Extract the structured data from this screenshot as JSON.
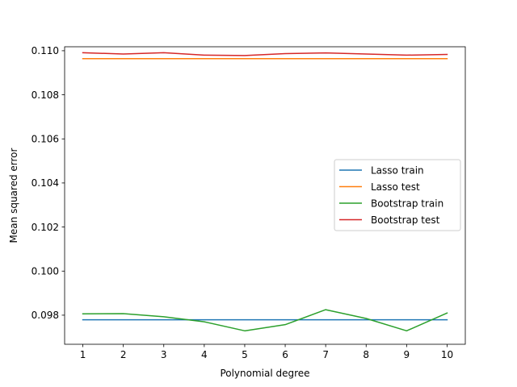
{
  "chart_data": {
    "type": "line",
    "title": "",
    "xlabel": "Polynomial degree",
    "ylabel": "Mean squared error",
    "x": [
      1,
      2,
      3,
      4,
      5,
      6,
      7,
      8,
      9,
      10
    ],
    "xlim": [
      0.55,
      10.45
    ],
    "ylim": [
      0.09668,
      0.11018
    ],
    "x_ticks": [
      1,
      2,
      3,
      4,
      5,
      6,
      7,
      8,
      9,
      10
    ],
    "y_ticks": [
      0.098,
      0.1,
      0.102,
      0.104,
      0.106,
      0.108,
      0.11
    ],
    "y_tick_labels": [
      "0.098",
      "0.100",
      "0.102",
      "0.104",
      "0.106",
      "0.108",
      "0.110"
    ],
    "grid": false,
    "legend_position": "center-right",
    "series": [
      {
        "name": "Lasso train",
        "color": "#1f77b4",
        "values": [
          0.09779,
          0.09779,
          0.09779,
          0.09779,
          0.09779,
          0.09779,
          0.09779,
          0.09779,
          0.09779,
          0.09779
        ]
      },
      {
        "name": "Lasso test",
        "color": "#ff7f0e",
        "values": [
          0.10964,
          0.10964,
          0.10964,
          0.10964,
          0.10964,
          0.10964,
          0.10964,
          0.10964,
          0.10964,
          0.10964
        ]
      },
      {
        "name": "Bootstrap train",
        "color": "#2ca02c",
        "values": [
          0.09806,
          0.09807,
          0.09793,
          0.0977,
          0.09729,
          0.09757,
          0.09825,
          0.09785,
          0.09729,
          0.0981
        ]
      },
      {
        "name": "Bootstrap test",
        "color": "#d62728",
        "values": [
          0.10991,
          0.10985,
          0.10991,
          0.1098,
          0.10978,
          0.10987,
          0.1099,
          0.10985,
          0.1098,
          0.10983
        ]
      }
    ]
  }
}
